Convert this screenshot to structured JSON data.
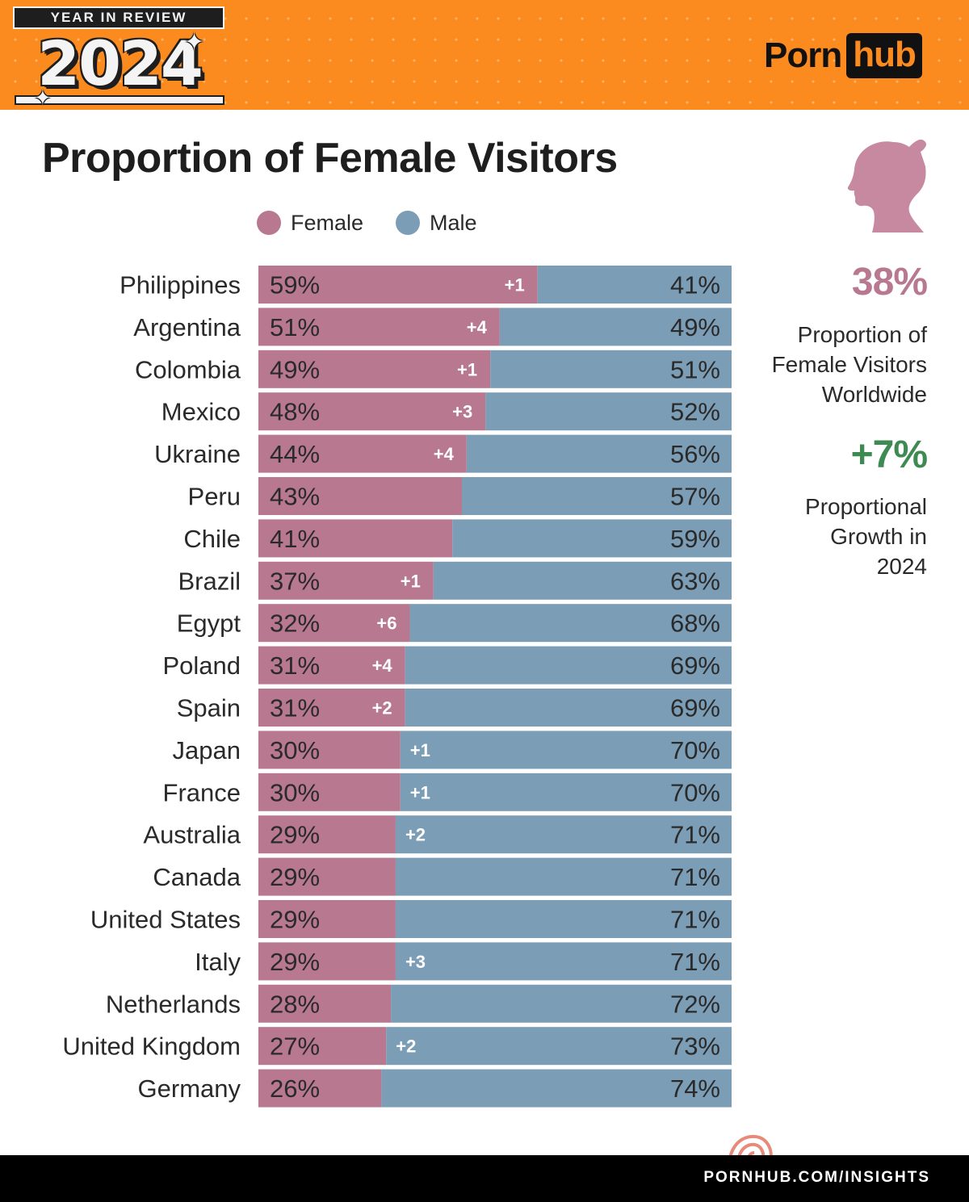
{
  "header": {
    "badge_top": "YEAR IN REVIEW",
    "badge_year": "2024",
    "logo_left": "Porn",
    "logo_right": "hub"
  },
  "colors": {
    "header_orange": "#fb8a1f",
    "female": "#b87890",
    "male": "#7b9db6",
    "growth_green": "#3e8a53",
    "dark": "#1e1e1e"
  },
  "legend": {
    "female_label": "Female",
    "male_label": "Male"
  },
  "sidebar": {
    "icon": "woman-silhouette-icon",
    "stat_pct": "38%",
    "stat_pct_label_lines": [
      "Proportion of",
      "Female Visitors",
      "Worldwide"
    ],
    "stat_growth": "+7%",
    "stat_growth_label_lines": [
      "Proportional",
      "Growth in",
      "2024"
    ]
  },
  "footer": {
    "url": "PORNHUB.COM/INSIGHTS"
  },
  "chart_data": {
    "type": "bar",
    "orientation": "horizontal",
    "stacked": "100%",
    "title": "Proportion of Female Visitors",
    "legend": [
      "Female",
      "Male"
    ],
    "categories": [
      "Philippines",
      "Argentina",
      "Colombia",
      "Mexico",
      "Ukraine",
      "Peru",
      "Chile",
      "Brazil",
      "Egypt",
      "Poland",
      "Spain",
      "Japan",
      "France",
      "Australia",
      "Canada",
      "United States",
      "Italy",
      "Netherlands",
      "United Kingdom",
      "Germany"
    ],
    "series": [
      {
        "name": "Female",
        "values": [
          59,
          51,
          49,
          48,
          44,
          43,
          41,
          37,
          32,
          31,
          31,
          30,
          30,
          29,
          29,
          29,
          29,
          28,
          27,
          26
        ]
      },
      {
        "name": "Male",
        "values": [
          41,
          49,
          51,
          52,
          56,
          57,
          59,
          63,
          68,
          69,
          69,
          70,
          70,
          71,
          71,
          71,
          71,
          72,
          73,
          74
        ]
      }
    ],
    "change_labels": [
      "+1",
      "+4",
      "+1",
      "+3",
      "+4",
      "",
      "",
      "+1",
      "+6",
      "+4",
      "+2",
      "+1",
      "+1",
      "+2",
      "",
      "",
      "+3",
      "",
      "+2",
      ""
    ],
    "value_format": "{v}%",
    "xlim": [
      0,
      100
    ]
  }
}
